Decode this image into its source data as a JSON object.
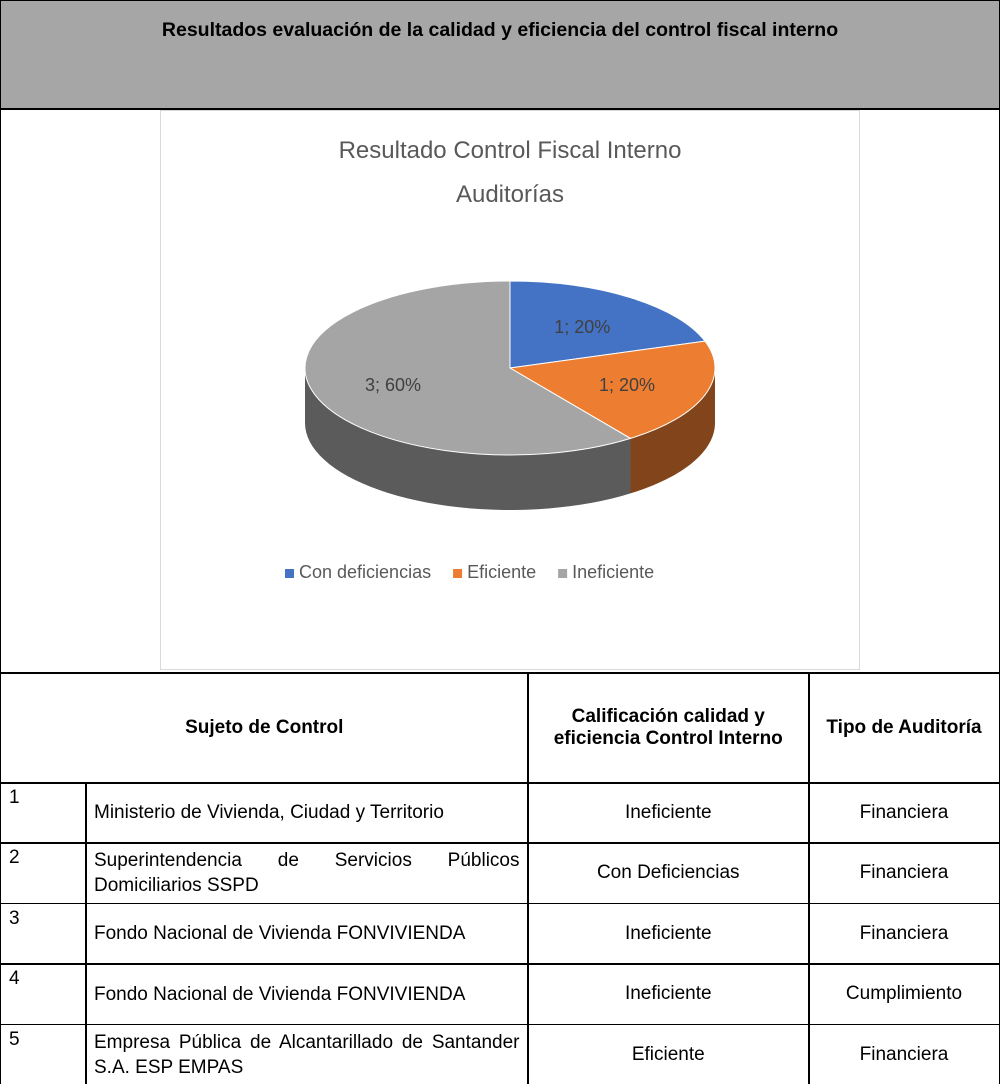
{
  "header": {
    "title": "Resultados evaluación de la calidad y eficiencia del control fiscal interno"
  },
  "chart_data": {
    "type": "pie",
    "title": [
      "Resultado Control Fiscal Interno",
      "Auditorías"
    ],
    "categories": [
      "Con deficiencias",
      "Eficiente",
      "Ineficiente"
    ],
    "values": [
      1,
      1,
      3
    ],
    "value_labels": [
      "1; 20%",
      "1; 20%",
      "3; 60%"
    ],
    "colors": [
      "#4472c4",
      "#ed7d31",
      "#a5a5a5"
    ],
    "legend": "bottom"
  },
  "table": {
    "header": [
      "Sujeto de Control",
      "Calificación calidad y eficiencia Control Interno",
      "Tipo de Auditoría"
    ],
    "rows": [
      [
        "1",
        "Ministerio de Vivienda, Ciudad y Territorio",
        "Ineficiente",
        "Financiera"
      ],
      [
        "2",
        "Superintendencia de Servicios Públicos Domiciliarios SSPD",
        "Con Deficiencias",
        "Financiera"
      ],
      [
        "3",
        "Fondo Nacional de Vivienda FONVIVIENDA",
        "Ineficiente",
        "Financiera"
      ],
      [
        "4",
        "Fondo Nacional de Vivienda FONVIVIENDA",
        "Ineficiente",
        "Cumplimiento"
      ],
      [
        "5",
        "Empresa Pública de Alcantarillado de Santander S.A. ESP EMPAS",
        "Eficiente",
        "Financiera"
      ]
    ]
  }
}
